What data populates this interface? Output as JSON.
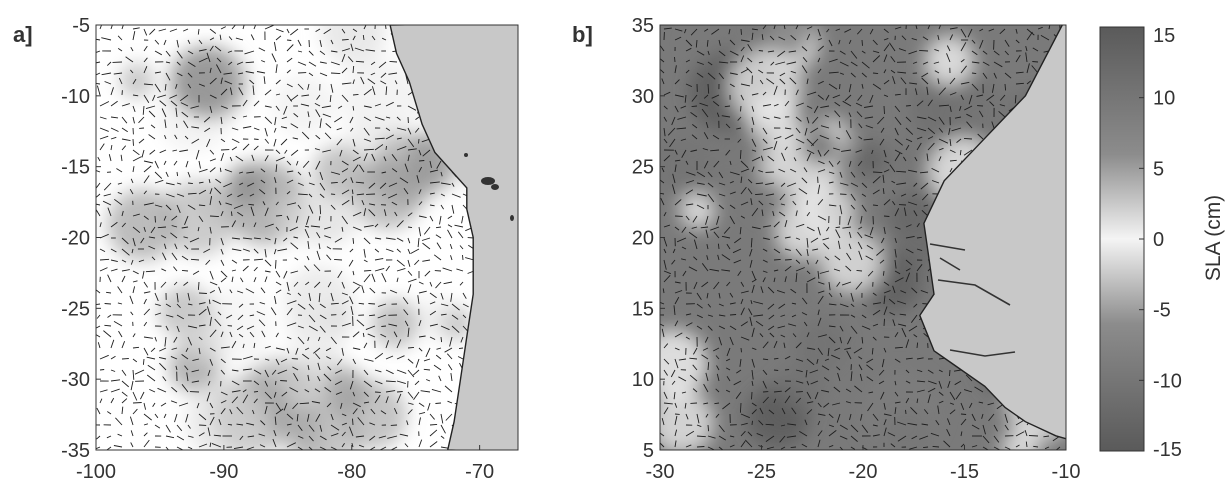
{
  "figure": {
    "colorbar_label": "SLA (cm)",
    "colorbar_ticks": [
      "15",
      "10",
      "5",
      "0",
      "-5",
      "-10",
      "-15"
    ],
    "colorbar_range": [
      -15,
      15
    ]
  },
  "chart_data": [
    {
      "type": "heatmap",
      "panel_label": "a]",
      "title": "",
      "xlabel": "",
      "ylabel": "",
      "xlim": [
        -100,
        -67
      ],
      "ylim": [
        -35,
        -5
      ],
      "x_ticks": [
        "-100",
        "-90",
        "-80",
        "-70"
      ],
      "y_ticks": [
        "-5",
        "-10",
        "-15",
        "-20",
        "-25",
        "-30",
        "-35"
      ],
      "overlay": "surface current vectors",
      "land_color": "#c8c8c8",
      "coastline": [
        [
          -77,
          -5
        ],
        [
          -76.5,
          -7
        ],
        [
          -75.5,
          -9
        ],
        [
          -74.5,
          -12
        ],
        [
          -73.5,
          -14
        ],
        [
          -71,
          -16.5
        ],
        [
          -71,
          -18
        ],
        [
          -70.5,
          -20
        ],
        [
          -70.5,
          -24
        ],
        [
          -71,
          -27
        ],
        [
          -71.5,
          -30
        ],
        [
          -72,
          -33
        ],
        [
          -72.5,
          -35
        ]
      ]
    },
    {
      "type": "heatmap",
      "panel_label": "b]",
      "title": "",
      "xlabel": "",
      "ylabel": "",
      "xlim": [
        -30,
        -10
      ],
      "ylim": [
        5,
        35
      ],
      "x_ticks": [
        "-30",
        "-25",
        "-20",
        "-15",
        "-10"
      ],
      "y_ticks": [
        "35",
        "30",
        "25",
        "20",
        "15",
        "10",
        "5"
      ],
      "overlay": "surface current vectors",
      "land_color": "#c8c8c8",
      "coastline": [
        [
          -10,
          35.5
        ],
        [
          -12,
          30
        ],
        [
          -14,
          27
        ],
        [
          -16,
          24
        ],
        [
          -17,
          21
        ],
        [
          -16.8,
          19
        ],
        [
          -16.5,
          16
        ],
        [
          -17.2,
          14.5
        ],
        [
          -16.5,
          12
        ],
        [
          -15.5,
          11
        ],
        [
          -14,
          9.5
        ],
        [
          -13,
          8
        ],
        [
          -12,
          7
        ],
        [
          -10.5,
          6
        ],
        [
          -10,
          5.8
        ]
      ]
    }
  ]
}
